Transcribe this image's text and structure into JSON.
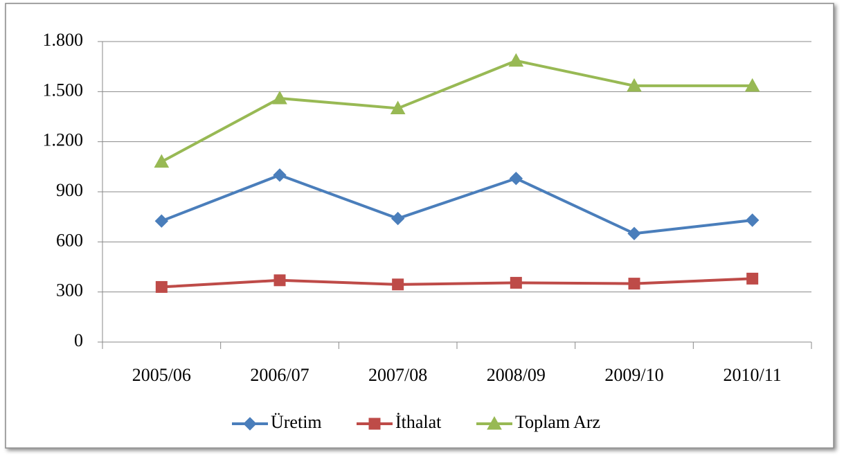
{
  "chart_data": {
    "type": "line",
    "categories": [
      "2005/06",
      "2006/07",
      "2007/08",
      "2008/09",
      "2009/10",
      "2010/11"
    ],
    "series": [
      {
        "name": "Üretim",
        "color": "#4a7ebb",
        "marker": "diamond",
        "values": [
          725,
          1000,
          740,
          980,
          650,
          730
        ]
      },
      {
        "name": "İthalat",
        "color": "#be4b48",
        "marker": "square",
        "values": [
          330,
          370,
          345,
          355,
          350,
          380
        ]
      },
      {
        "name": "Toplam Arz",
        "color": "#98b954",
        "marker": "triangle",
        "values": [
          1080,
          1460,
          1400,
          1685,
          1535,
          1535
        ]
      }
    ],
    "ylim": [
      0,
      1800
    ],
    "yticks": [
      0,
      300,
      600,
      900,
      {
        "value": 1200,
        "label": "1.200"
      },
      {
        "value": 1500,
        "label": "1.500"
      },
      {
        "value": 1800,
        "label": "1.800"
      }
    ],
    "grid": true,
    "legend": "bottom"
  }
}
